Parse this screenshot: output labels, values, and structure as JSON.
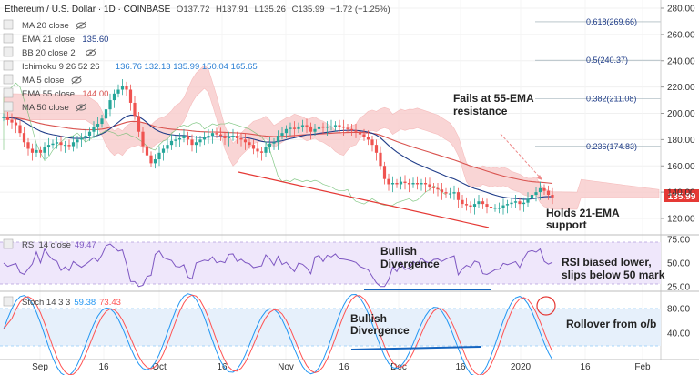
{
  "header": {
    "symbol": "Ethereum / U.S. Dollar · 1D · COINBASE",
    "o_label": "O",
    "o": "137.72",
    "h_label": "H",
    "h": "137.91",
    "l_label": "L",
    "l": "135.26",
    "c_label": "C",
    "c": "135.99",
    "change": "−1.72 (−1.25%)"
  },
  "legend": [
    {
      "label": "MA 20 close",
      "value": "",
      "hidden": true,
      "color": "#999999"
    },
    {
      "label": "EMA 21 close",
      "value": "135.60",
      "hidden": false,
      "color": "#1f3c88"
    },
    {
      "label": "BB 20 close 2",
      "value": "",
      "hidden": true,
      "color": "#999999"
    },
    {
      "label": "Ichimoku 9 26 52 26",
      "value": "136.76 132.13 135.99 150.04 165.65",
      "hidden": false,
      "color": "#2a7fd4"
    },
    {
      "label": "MA 5 close",
      "value": "",
      "hidden": true,
      "color": "#999999"
    },
    {
      "label": "EMA 55 close",
      "value": "144.00",
      "hidden": false,
      "color": "#d9534f"
    },
    {
      "label": "MA 50 close",
      "value": "",
      "hidden": true,
      "color": "#999999"
    }
  ],
  "icons": {
    "eye": "eye-off-icon"
  },
  "price_axis": {
    "ticks": [
      "280.00",
      "260.00",
      "240.00",
      "220.00",
      "200.00",
      "180.00",
      "160.00",
      "140.00",
      "120.00"
    ],
    "current": "135.99",
    "current_color": "#e53935"
  },
  "rsi": {
    "label": "RSI 14 close",
    "value": "49.47",
    "ticks": [
      "75.00",
      "50.00",
      "25.00"
    ],
    "color": "#7e57c2"
  },
  "stoch": {
    "label": "Stoch 14 3 3",
    "k": "59.38",
    "d": "73.43",
    "ticks": [
      "80.00",
      "40.00"
    ],
    "k_color": "#2196f3",
    "d_color": "#ff5252"
  },
  "time_axis": [
    "Sep",
    "16",
    "Oct",
    "16",
    "Nov",
    "16",
    "Dec",
    "16",
    "2020",
    "16",
    "Feb"
  ],
  "fib_levels": [
    {
      "label": "0.618(269.66)",
      "price": 269.66
    },
    {
      "label": "0.5(240.37)",
      "price": 240.37
    },
    {
      "label": "0.382(211.08)",
      "price": 211.08
    },
    {
      "label": "0.236(174.83)",
      "price": 174.83
    }
  ],
  "annotations": {
    "fails_1": "Fails at 55-EMA",
    "fails_2": "resistance",
    "holds_1": "Holds 21-EMA",
    "holds_2": "support",
    "div_rsi_1": "Bullish",
    "div_rsi_2": "Divergence",
    "rsi_note_1": "RSI biased lower,",
    "rsi_note_2": "slips below 50 mark",
    "div_stoch_1": "Bullish",
    "div_stoch_2": "Divergence",
    "stoch_note": "Rollover from o/b"
  },
  "colors": {
    "up": "#26a69a",
    "down": "#ef5350",
    "cloud_bear": "#f8c8c8",
    "cloud_bull": "#d4f0d4",
    "trend": "#e53935",
    "divergence": "#1565c0"
  },
  "chart_data": {
    "type": "candlestick",
    "ylim": [
      110,
      280
    ],
    "x_ticks": [
      "Sep",
      "16",
      "Oct",
      "16",
      "Nov",
      "16",
      "Dec",
      "16",
      "2020",
      "16",
      "Feb"
    ],
    "ema21_last": 135.6,
    "ema55_last": 144.0,
    "close_last": 135.99,
    "rsi_last": 49.47,
    "stoch_k_last": 59.38,
    "stoch_d_last": 73.43,
    "fib": [
      {
        "ratio": 0.618,
        "price": 269.66
      },
      {
        "ratio": 0.5,
        "price": 240.37
      },
      {
        "ratio": 0.382,
        "price": 211.08
      },
      {
        "ratio": 0.236,
        "price": 174.83
      }
    ],
    "closes": [
      197,
      195,
      193,
      191,
      185,
      178,
      173,
      170,
      172,
      170,
      174,
      176,
      177,
      178,
      176,
      176,
      175,
      178,
      180,
      181,
      183,
      186,
      190,
      192,
      196,
      203,
      210,
      215,
      218,
      221,
      218,
      208,
      198,
      186,
      175,
      168,
      162,
      165,
      170,
      173,
      176,
      179,
      180,
      181,
      183,
      180,
      176,
      178,
      180,
      182,
      183,
      185,
      184,
      183,
      181,
      182,
      183,
      181,
      180,
      178,
      176,
      173,
      171,
      170,
      174,
      177,
      178,
      183,
      185,
      188,
      189,
      188,
      190,
      191,
      190,
      186,
      188,
      190,
      189,
      190,
      190,
      191,
      190,
      189,
      188,
      187,
      186,
      184,
      182,
      180,
      176,
      170,
      160,
      150,
      146,
      147,
      146,
      148,
      147,
      146,
      147,
      146,
      147,
      146,
      144,
      143,
      142,
      140,
      139,
      139,
      140,
      134,
      131,
      130,
      129,
      131,
      133,
      131,
      129,
      128,
      128,
      128,
      130,
      131,
      132,
      133,
      131,
      132,
      135,
      138,
      140,
      143,
      141,
      138,
      136
    ]
  }
}
